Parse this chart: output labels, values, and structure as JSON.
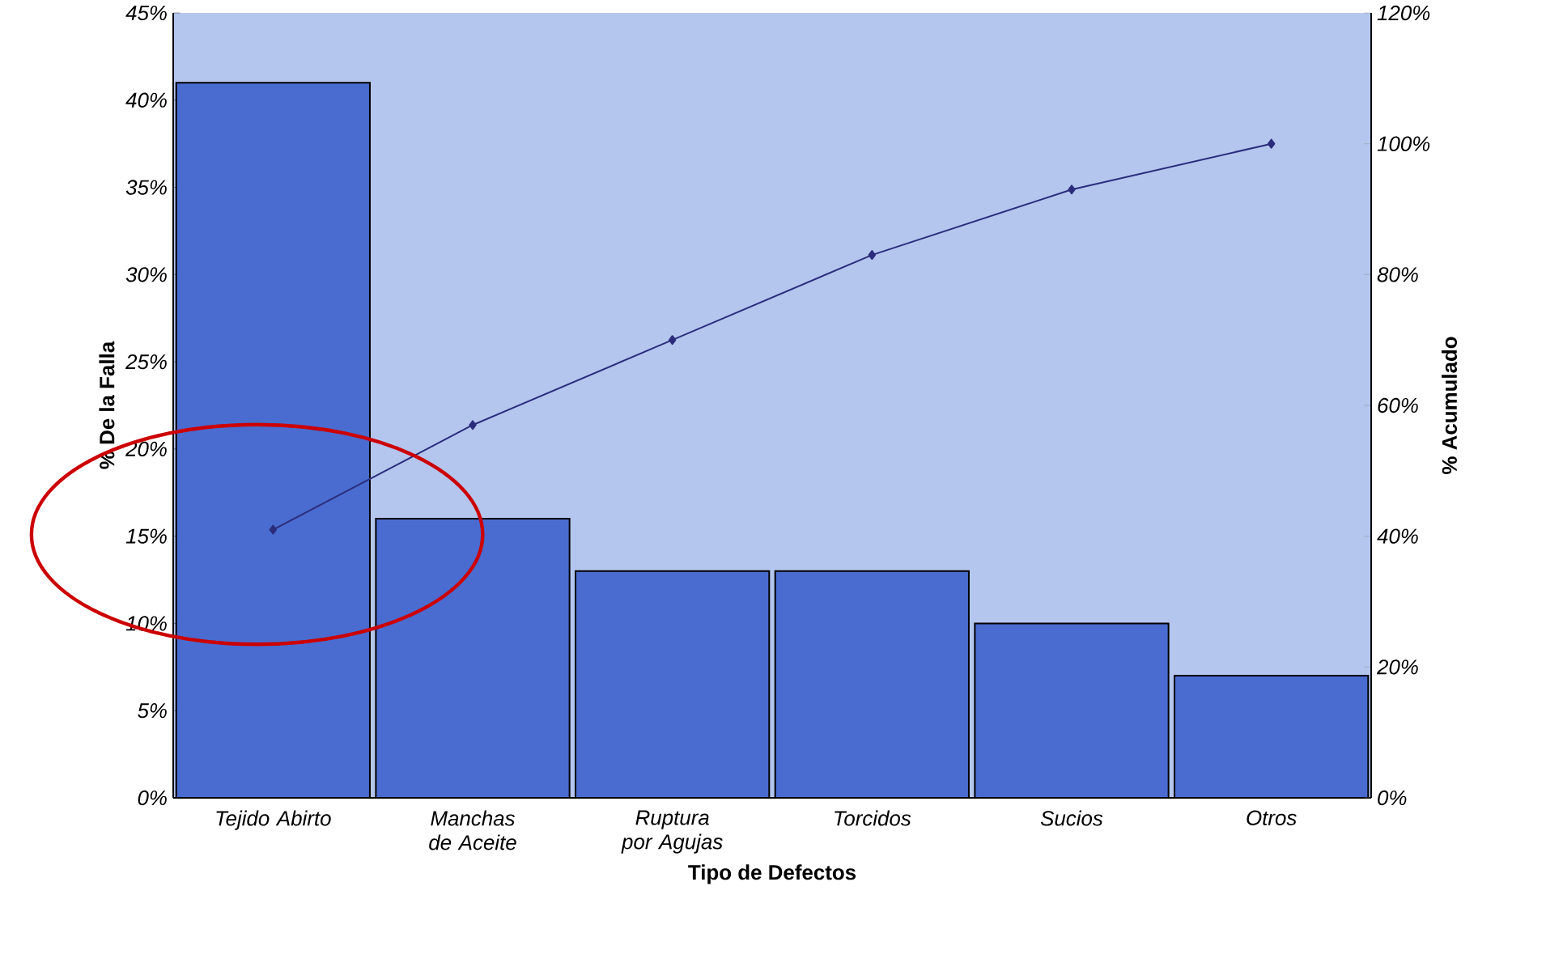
{
  "chart_data": {
    "type": "bar",
    "xlabel": "Tipo de Defectos",
    "ylabel": "% De la Falla",
    "y2label": "% Acumulado",
    "categories": [
      "Tejido Abirto",
      "Manchas de Aceite",
      "Ruptura por Agujas",
      "Torcidos",
      "Sucios",
      "Otros"
    ],
    "series": [
      {
        "color": "#4a6cd0",
        "values": [
          41,
          16,
          13,
          13,
          10,
          7
        ]
      },
      {
        "type": "line",
        "axis": "y2",
        "color": "#2b2d7c",
        "marker": "diamond",
        "values": [
          41,
          57,
          70,
          83,
          93,
          100
        ]
      }
    ],
    "ylim": [
      0,
      45
    ],
    "yticks": [
      {
        "value": 0,
        "label": "0%"
      },
      {
        "value": 5,
        "label": "5%"
      },
      {
        "value": 10,
        "label": "10%"
      },
      {
        "value": 15,
        "label": "15%"
      },
      {
        "value": 20,
        "label": "20%"
      },
      {
        "value": 25,
        "label": "25%"
      },
      {
        "value": 30,
        "label": "30%"
      },
      {
        "value": 35,
        "label": "35%"
      },
      {
        "value": 40,
        "label": "40%"
      },
      {
        "value": 45,
        "label": "45%"
      }
    ],
    "y2lim": [
      0,
      120
    ],
    "y2ticks": [
      {
        "value": 0,
        "label": "0%"
      },
      {
        "value": 20,
        "label": "20%"
      },
      {
        "value": 40,
        "label": "40%"
      },
      {
        "value": 60,
        "label": "60%"
      },
      {
        "value": 80,
        "label": "80%"
      },
      {
        "value": 100,
        "label": "100%"
      },
      {
        "value": 120,
        "label": "120%"
      }
    ]
  }
}
